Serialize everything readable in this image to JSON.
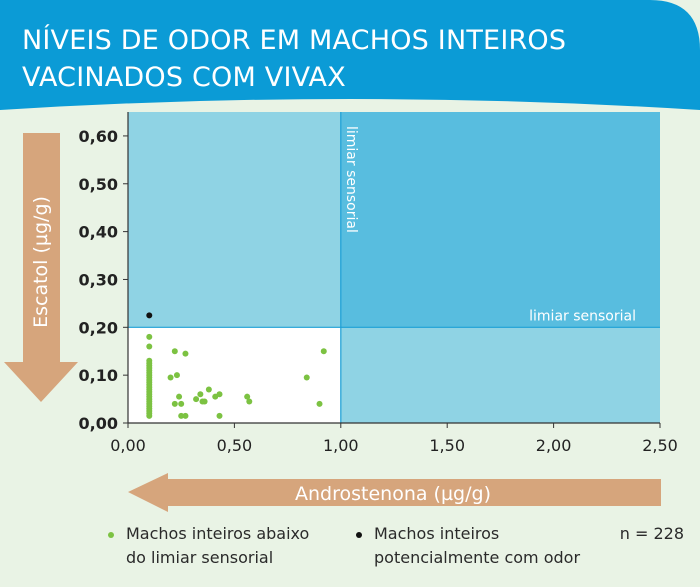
{
  "title_line1": "NÍVEIS DE ODOR EM MACHOS INTEIROS",
  "title_line2": "VACINADOS COM VIVAX",
  "colors": {
    "header": "#0b9bd6",
    "panel_bg": "#e9f3e5",
    "zone_light": "#8fd3e4",
    "zone_dark": "#58bddf",
    "zone_white": "#ffffff",
    "threshold_line": "#1b9fd6",
    "arrow": "#d6a57c",
    "dot_green": "#7cc242",
    "dot_black": "#111111",
    "highlight_tick": "#1b8fcf"
  },
  "chart_data": {
    "type": "scatter",
    "xlabel": "Androstenona (µg/g)",
    "ylabel": "Escatol (µg/g)",
    "xlim": [
      0,
      2.5
    ],
    "ylim": [
      0,
      0.65
    ],
    "x_ticks": [
      "0,00",
      "0,50",
      "1,00",
      "1,50",
      "2,00",
      "2,50"
    ],
    "x_tick_values": [
      0,
      0.5,
      1.0,
      1.5,
      2.0,
      2.5
    ],
    "y_ticks": [
      "0,00",
      "0,10",
      "0,20",
      "0,30",
      "0,40",
      "0,50",
      "0,60"
    ],
    "y_tick_values": [
      0,
      0.1,
      0.2,
      0.3,
      0.4,
      0.5,
      0.6
    ],
    "thresholds": {
      "x": 1.0,
      "y": 0.2
    },
    "threshold_label_vertical": "limiar sensorial",
    "threshold_label_horizontal": "limiar sensorial",
    "highlighted_ticks": {
      "x": "1,00",
      "y": "0,20"
    },
    "series": [
      {
        "name": "Machos inteiros abaixo do limiar sensorial",
        "color": "#7cc242",
        "points": [
          [
            0.1,
            0.18
          ],
          [
            0.1,
            0.16
          ],
          [
            0.1,
            0.13
          ],
          [
            0.1,
            0.125
          ],
          [
            0.1,
            0.12
          ],
          [
            0.1,
            0.115
          ],
          [
            0.1,
            0.11
          ],
          [
            0.1,
            0.105
          ],
          [
            0.1,
            0.1
          ],
          [
            0.1,
            0.095
          ],
          [
            0.1,
            0.09
          ],
          [
            0.1,
            0.085
          ],
          [
            0.1,
            0.08
          ],
          [
            0.1,
            0.075
          ],
          [
            0.1,
            0.07
          ],
          [
            0.1,
            0.065
          ],
          [
            0.1,
            0.06
          ],
          [
            0.1,
            0.055
          ],
          [
            0.1,
            0.05
          ],
          [
            0.1,
            0.045
          ],
          [
            0.1,
            0.04
          ],
          [
            0.1,
            0.035
          ],
          [
            0.1,
            0.03
          ],
          [
            0.1,
            0.025
          ],
          [
            0.1,
            0.02
          ],
          [
            0.1,
            0.015
          ],
          [
            0.22,
            0.15
          ],
          [
            0.27,
            0.145
          ],
          [
            0.2,
            0.095
          ],
          [
            0.23,
            0.1
          ],
          [
            0.24,
            0.055
          ],
          [
            0.25,
            0.04
          ],
          [
            0.22,
            0.04
          ],
          [
            0.25,
            0.015
          ],
          [
            0.27,
            0.015
          ],
          [
            0.32,
            0.05
          ],
          [
            0.34,
            0.06
          ],
          [
            0.36,
            0.045
          ],
          [
            0.38,
            0.07
          ],
          [
            0.35,
            0.045
          ],
          [
            0.41,
            0.055
          ],
          [
            0.43,
            0.06
          ],
          [
            0.43,
            0.015
          ],
          [
            0.56,
            0.055
          ],
          [
            0.57,
            0.045
          ],
          [
            0.84,
            0.095
          ],
          [
            0.92,
            0.15
          ],
          [
            0.9,
            0.04
          ]
        ]
      },
      {
        "name": "Machos inteiros potencialmente com odor",
        "color": "#111111",
        "points": [
          [
            0.1,
            0.225
          ]
        ]
      }
    ],
    "annotation": "n = 228"
  },
  "legend": {
    "item1_line1": "Machos inteiros abaixo",
    "item1_line2": "do limiar sensorial",
    "item2_line1": "Machos inteiros",
    "item2_line2": "potencialmente com odor",
    "n_text": "n = 228"
  }
}
